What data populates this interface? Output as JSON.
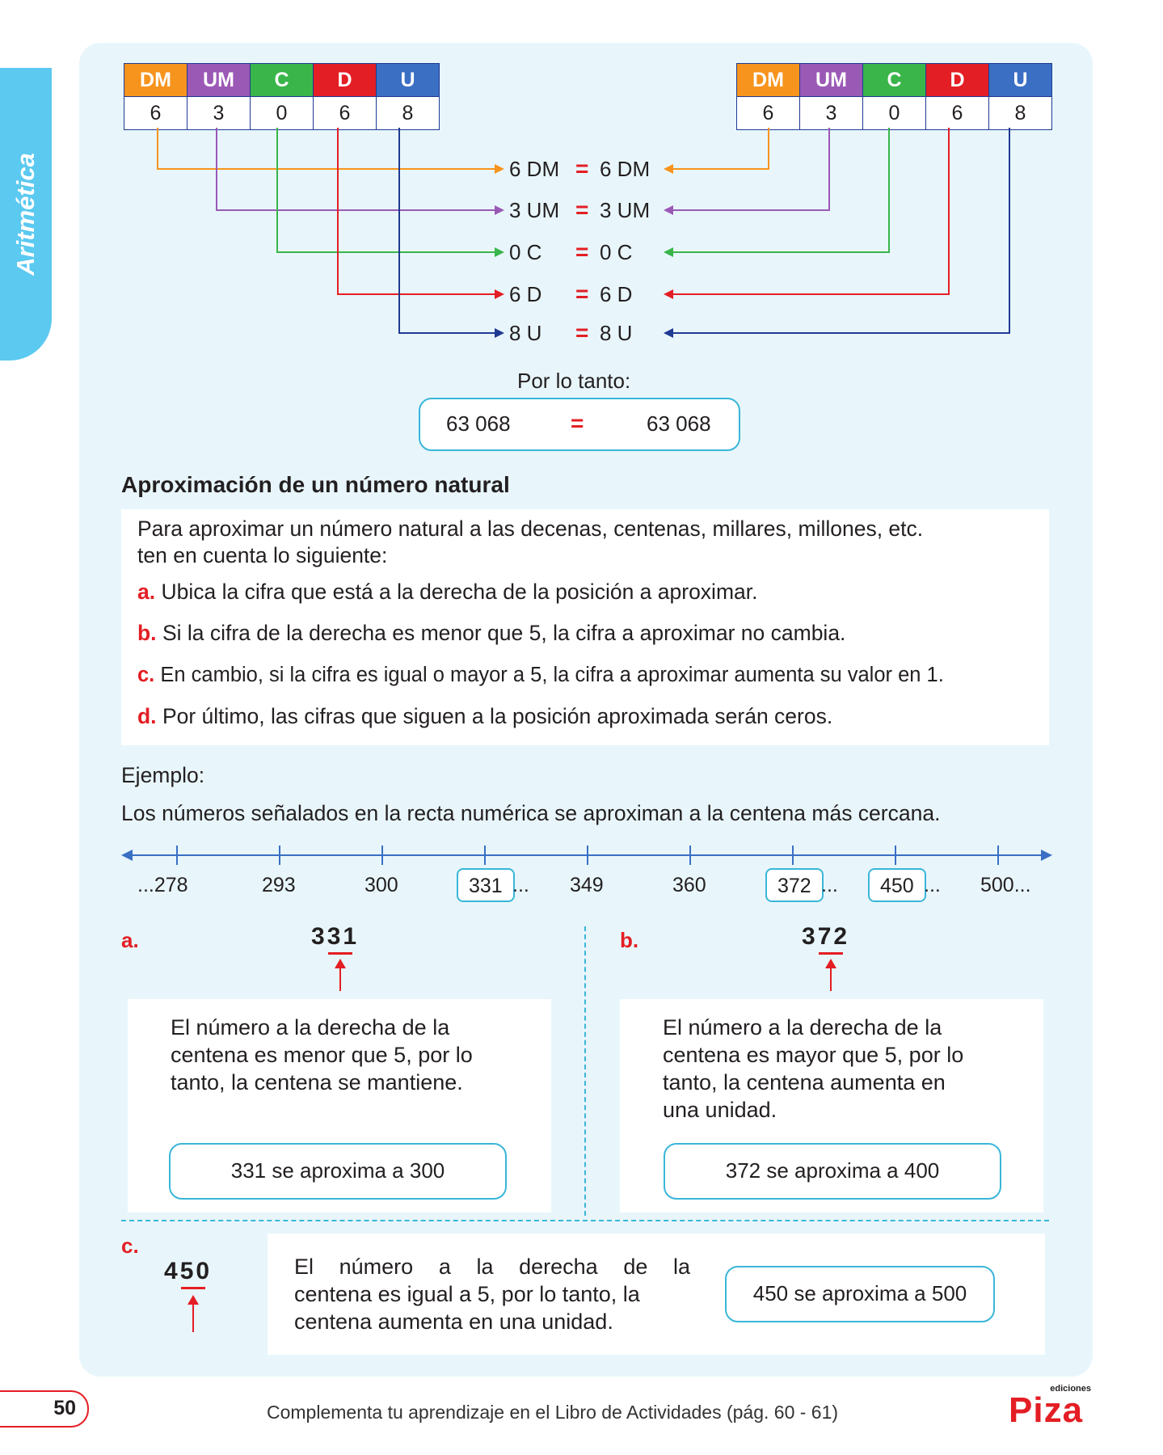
{
  "sidebar": {
    "tab_label": "Aritmética"
  },
  "place_value": {
    "headers": [
      "DM",
      "UM",
      "C",
      "D",
      "U"
    ],
    "colors": [
      "#f7941d",
      "#9b59b6",
      "#39b54a",
      "#e31e24",
      "#3a6fc4"
    ],
    "left_digits": [
      "6",
      "3",
      "0",
      "6",
      "8"
    ],
    "right_digits": [
      "6",
      "3",
      "0",
      "6",
      "8"
    ]
  },
  "comparisons": [
    {
      "left": "6 DM",
      "sign": "=",
      "right": "6 DM"
    },
    {
      "left": "3 UM",
      "sign": "=",
      "right": "3 UM"
    },
    {
      "left": "0 C",
      "sign": "=",
      "right": "0 C"
    },
    {
      "left": "6 D",
      "sign": "=",
      "right": "6 D"
    },
    {
      "left": "8 U",
      "sign": "=",
      "right": "8 U"
    }
  ],
  "conclusion": {
    "label": "Por lo tanto:",
    "left": "63 068",
    "sign": "=",
    "right": "63 068"
  },
  "approx": {
    "title": "Aproximación de un número natural",
    "intro_1": "Para aproximar un número natural a las decenas, centenas, millares, millones, etc.",
    "intro_2": "ten en cuenta lo siguiente:",
    "rules": [
      {
        "letter": "a.",
        "text": "Ubica la cifra que está a la derecha de la posición a aproximar."
      },
      {
        "letter": "b.",
        "text": "Si la cifra de la derecha es menor que 5, la cifra a aproximar no cambia."
      },
      {
        "letter": "c.",
        "text": "En cambio, si la cifra es igual o mayor a 5, la cifra a aproximar aumenta su valor en 1."
      },
      {
        "letter": "d.",
        "text": "Por último, las cifras que siguen a la posición aproximada serán ceros."
      }
    ]
  },
  "example": {
    "label": "Ejemplo:",
    "sentence": "Los números señalados en la recta numérica se aproximan a la centena más cercana.",
    "ticks": [
      "...278",
      "293",
      "300",
      "331",
      "349",
      "360",
      "372",
      "450",
      "500..."
    ],
    "ellipsis": "...",
    "cases": [
      {
        "letter": "a.",
        "digits": [
          "3",
          "3",
          "1"
        ],
        "explanation": [
          "El número a la derecha de la",
          "centena es menor que 5, por lo",
          "tanto, la centena se mantiene."
        ],
        "result": "331 se aproxima a 300"
      },
      {
        "letter": "b.",
        "digits": [
          "3",
          "7",
          "2"
        ],
        "explanation": [
          "El número a la derecha de la",
          "centena es mayor que 5, por lo",
          "tanto, la centena aumenta en",
          "una unidad."
        ],
        "result": "372 se aproxima a 400"
      },
      {
        "letter": "c.",
        "digits": [
          "4",
          "5",
          "0"
        ],
        "explanation": [
          "El número a la derecha de la",
          "centena es igual a 5, por lo tanto, la",
          "centena aumenta en una unidad."
        ],
        "result": "450 se aproxima a 500"
      }
    ]
  },
  "footer": {
    "page_number": "50",
    "note": "Complementa tu aprendizaje en el Libro de Actividades (pág. 60 - 61)",
    "brand": "Piza",
    "brand_small": "ediciones"
  }
}
